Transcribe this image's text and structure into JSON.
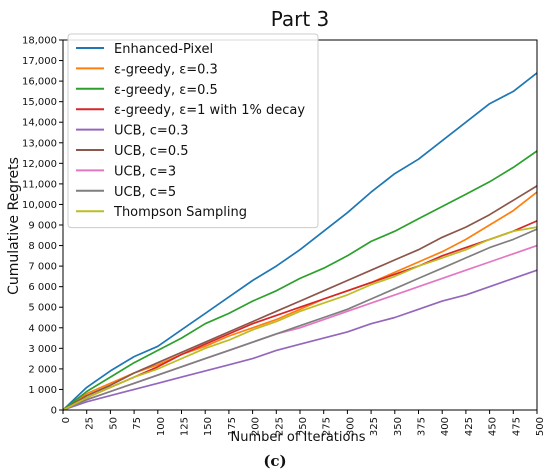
{
  "caption": "(c)",
  "chart_data": {
    "type": "line",
    "title": "Part 3",
    "xlabel": "Number of Iterations",
    "ylabel": "Cumulative Regrets",
    "xlim": [
      0,
      500
    ],
    "ylim": [
      0,
      18000
    ],
    "x_ticks": [
      0,
      25,
      50,
      75,
      100,
      125,
      150,
      175,
      200,
      225,
      250,
      275,
      300,
      325,
      350,
      375,
      400,
      425,
      450,
      475,
      500
    ],
    "y_ticks": [
      0,
      1000,
      2000,
      3000,
      4000,
      5000,
      6000,
      7000,
      8000,
      9000,
      10000,
      11000,
      12000,
      13000,
      14000,
      15000,
      16000,
      17000,
      18000
    ],
    "y_tick_labels": [
      "0",
      "1 000",
      "2 000",
      "3 000",
      "4 000",
      "5 000",
      "6 000",
      "7 000",
      "8 000",
      "9 000",
      "10,000",
      "11,000",
      "12,000",
      "13,000",
      "14,000",
      "15,000",
      "16,000",
      "17,000",
      "18,000"
    ],
    "grid": false,
    "legend_position": "top-left",
    "x": [
      0,
      25,
      50,
      75,
      100,
      125,
      150,
      175,
      200,
      225,
      250,
      275,
      300,
      325,
      350,
      375,
      400,
      425,
      450,
      475,
      500
    ],
    "series": [
      {
        "name": "Enhanced-Pixel",
        "color": "#1f77b4",
        "values": [
          0,
          1100,
          1900,
          2600,
          3100,
          3900,
          4700,
          5500,
          6300,
          7000,
          7800,
          8700,
          9600,
          10600,
          11500,
          12200,
          13100,
          14000,
          14900,
          15500,
          16400
        ]
      },
      {
        "name": "ε-greedy, ε=0.3",
        "color": "#ff7f0e",
        "values": [
          0,
          800,
          1300,
          1800,
          2200,
          2700,
          3100,
          3600,
          4000,
          4400,
          4900,
          5400,
          5800,
          6200,
          6700,
          7200,
          7700,
          8300,
          9000,
          9700,
          10600
        ]
      },
      {
        "name": "ε-greedy, ε=0.5",
        "color": "#2ca02c",
        "values": [
          0,
          900,
          1600,
          2300,
          2900,
          3500,
          4200,
          4700,
          5300,
          5800,
          6400,
          6900,
          7500,
          8200,
          8700,
          9300,
          9900,
          10500,
          11100,
          11800,
          12600
        ]
      },
      {
        "name": "ε-greedy, ε=1 with 1% decay",
        "color": "#d62728",
        "values": [
          0,
          600,
          1100,
          1600,
          2100,
          2700,
          3200,
          3700,
          4200,
          4600,
          5000,
          5400,
          5800,
          6200,
          6600,
          7000,
          7500,
          7900,
          8300,
          8700,
          9200
        ]
      },
      {
        "name": "UCB, c=0.3",
        "color": "#9467bd",
        "values": [
          0,
          400,
          700,
          1000,
          1300,
          1600,
          1900,
          2200,
          2500,
          2900,
          3200,
          3500,
          3800,
          4200,
          4500,
          4900,
          5300,
          5600,
          6000,
          6400,
          6800
        ]
      },
      {
        "name": "UCB, c=0.5",
        "color": "#8c564b",
        "values": [
          0,
          700,
          1200,
          1800,
          2300,
          2800,
          3300,
          3800,
          4300,
          4800,
          5300,
          5800,
          6300,
          6800,
          7300,
          7800,
          8400,
          8900,
          9500,
          10200,
          10900
        ]
      },
      {
        "name": "UCB, c=3",
        "color": "#e377c2",
        "values": [
          0,
          500,
          900,
          1300,
          1700,
          2100,
          2500,
          2900,
          3300,
          3700,
          4000,
          4400,
          4800,
          5200,
          5600,
          6000,
          6400,
          6800,
          7200,
          7600,
          8000
        ]
      },
      {
        "name": "UCB, c=5",
        "color": "#7f7f7f",
        "values": [
          0,
          500,
          900,
          1300,
          1700,
          2100,
          2500,
          2900,
          3300,
          3700,
          4100,
          4500,
          4900,
          5400,
          5900,
          6400,
          6900,
          7400,
          7900,
          8300,
          8800
        ]
      },
      {
        "name": "Thompson Sampling",
        "color": "#bcbd22",
        "values": [
          0,
          600,
          1100,
          1600,
          2000,
          2500,
          3000,
          3400,
          3900,
          4300,
          4800,
          5200,
          5600,
          6100,
          6500,
          7000,
          7400,
          7800,
          8300,
          8700,
          8900
        ]
      }
    ]
  }
}
